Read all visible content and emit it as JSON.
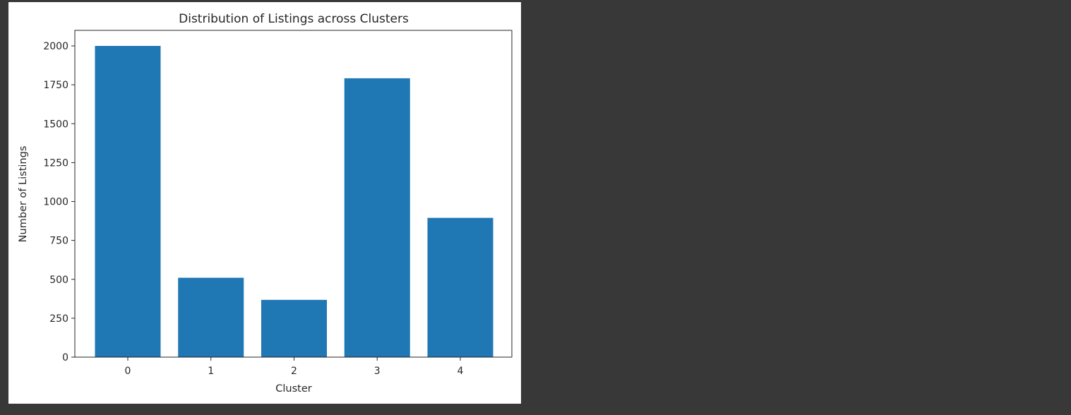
{
  "output_cell": {
    "background_color": "#383838"
  },
  "chart_data": {
    "type": "bar",
    "title": "Distribution of Listings across Clusters",
    "xlabel": "Cluster",
    "ylabel": "Number of Listings",
    "categories": [
      "0",
      "1",
      "2",
      "3",
      "4"
    ],
    "values": [
      2000,
      510,
      368,
      1792,
      895
    ],
    "ylim": [
      0,
      2100
    ],
    "yticks": [
      0,
      250,
      500,
      750,
      1000,
      1250,
      1500,
      1750,
      2000
    ],
    "bar_color": "#1f77b4",
    "grid": false,
    "legend": "none"
  }
}
